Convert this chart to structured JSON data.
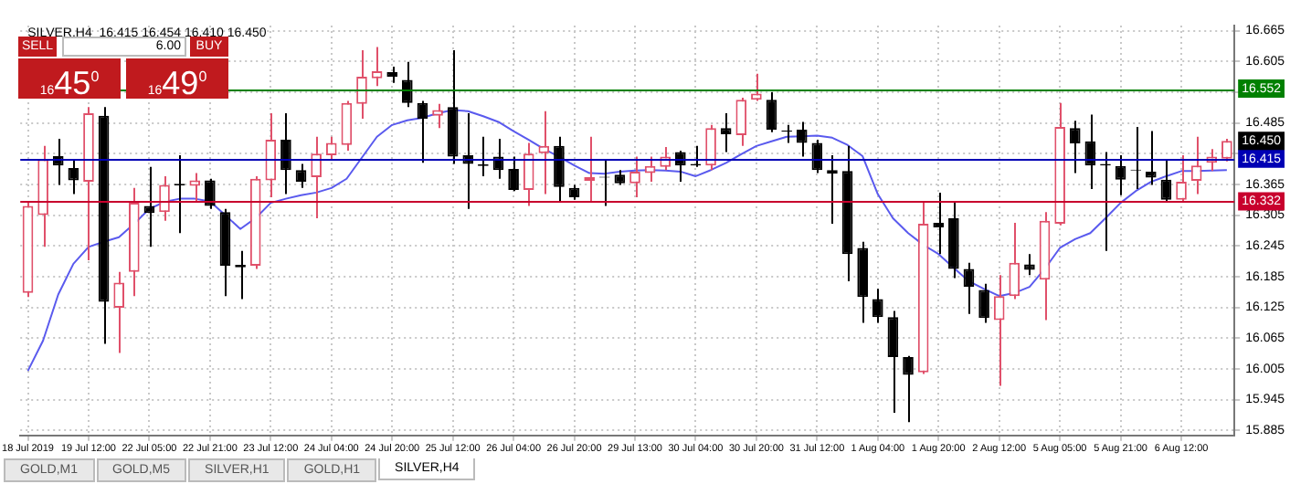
{
  "chart_data": {
    "type": "candlestick",
    "title": "SILVER,H4  16.415 16.454 16.410 16.450",
    "categories": [
      "18 Jul 2019",
      null,
      null,
      null,
      "19 Jul 12:00",
      null,
      null,
      null,
      "22 Jul 05:00",
      null,
      null,
      null,
      "22 Jul 21:00",
      null,
      null,
      null,
      "23 Jul 12:00",
      null,
      null,
      null,
      "24 Jul 04:00",
      null,
      null,
      null,
      "24 Jul 20:00",
      null,
      null,
      null,
      "25 Jul 12:00",
      null,
      null,
      null,
      "26 Jul 04:00",
      null,
      null,
      null,
      "26 Jul 20:00",
      null,
      null,
      null,
      "29 Jul 13:00",
      null,
      null,
      null,
      "30 Jul 04:00",
      null,
      null,
      null,
      "30 Jul 20:00",
      null,
      null,
      null,
      "31 Jul 12:00",
      null,
      null,
      null,
      "1 Aug 04:00",
      null,
      null,
      null,
      "1 Aug 20:00",
      null,
      null,
      null,
      "2 Aug 12:00",
      null,
      null,
      null,
      "5 Aug 05:00",
      null,
      null,
      null,
      "5 Aug 21:00",
      null,
      null,
      null,
      "6 Aug 12:00",
      null,
      null,
      null
    ],
    "ohlc": [
      [
        16.153,
        16.33,
        16.145,
        16.323
      ],
      [
        16.305,
        16.44,
        16.243,
        16.414
      ],
      [
        16.42,
        16.454,
        16.364,
        16.402
      ],
      [
        16.397,
        16.414,
        16.346,
        16.373
      ],
      [
        16.37,
        16.516,
        16.217,
        16.504
      ],
      [
        16.499,
        16.516,
        16.054,
        16.136
      ],
      [
        16.124,
        16.194,
        16.036,
        16.173
      ],
      [
        16.194,
        16.358,
        16.147,
        16.329
      ],
      [
        16.323,
        16.399,
        16.243,
        16.309
      ],
      [
        16.311,
        16.381,
        16.294,
        16.364
      ],
      [
        16.366,
        16.422,
        16.27,
        16.363
      ],
      [
        16.362,
        16.387,
        16.329,
        16.373
      ],
      [
        16.373,
        16.376,
        16.317,
        16.323
      ],
      [
        16.311,
        16.317,
        16.147,
        16.206
      ],
      [
        16.208,
        16.235,
        16.141,
        16.203
      ],
      [
        16.206,
        16.381,
        16.2,
        16.376
      ],
      [
        16.373,
        16.504,
        16.34,
        16.452
      ],
      [
        16.452,
        16.504,
        16.346,
        16.393
      ],
      [
        16.393,
        16.405,
        16.358,
        16.37
      ],
      [
        16.379,
        16.458,
        16.299,
        16.425
      ],
      [
        16.422,
        16.458,
        16.414,
        16.446
      ],
      [
        16.442,
        16.528,
        16.431,
        16.524
      ],
      [
        16.522,
        16.627,
        16.493,
        16.575
      ],
      [
        16.572,
        16.633,
        16.557,
        16.586
      ],
      [
        16.584,
        16.595,
        16.563,
        16.575
      ],
      [
        16.569,
        16.604,
        16.516,
        16.524
      ],
      [
        16.524,
        16.528,
        16.407,
        16.493
      ],
      [
        16.499,
        16.522,
        16.475,
        16.51
      ],
      [
        16.516,
        16.627,
        16.405,
        16.419
      ],
      [
        16.422,
        16.504,
        16.317,
        16.405
      ],
      [
        16.404,
        16.458,
        16.381,
        16.401
      ],
      [
        16.419,
        16.454,
        16.376,
        16.393
      ],
      [
        16.395,
        16.419,
        16.352,
        16.354
      ],
      [
        16.354,
        16.446,
        16.323,
        16.425
      ],
      [
        16.426,
        16.508,
        16.346,
        16.44
      ],
      [
        16.44,
        16.458,
        16.329,
        16.36
      ],
      [
        16.358,
        16.364,
        16.335,
        16.34
      ],
      [
        16.372,
        16.458,
        16.329,
        16.379
      ],
      [
        16.38,
        16.414,
        16.323,
        16.378
      ],
      [
        16.384,
        16.393,
        16.364,
        16.367
      ],
      [
        16.367,
        16.419,
        16.34,
        16.39
      ],
      [
        16.387,
        16.419,
        16.37,
        16.401
      ],
      [
        16.399,
        16.438,
        16.393,
        16.419
      ],
      [
        16.428,
        16.431,
        16.37,
        16.402
      ],
      [
        16.405,
        16.44,
        16.399,
        16.402
      ],
      [
        16.402,
        16.481,
        16.393,
        16.475
      ],
      [
        16.475,
        16.504,
        16.428,
        16.463
      ],
      [
        16.461,
        16.534,
        16.44,
        16.53
      ],
      [
        16.53,
        16.581,
        16.528,
        16.542
      ],
      [
        16.53,
        16.545,
        16.467,
        16.472
      ],
      [
        16.47,
        16.481,
        16.446,
        16.468
      ],
      [
        16.472,
        16.487,
        16.419,
        16.446
      ],
      [
        16.446,
        16.452,
        16.387,
        16.393
      ],
      [
        16.393,
        16.422,
        16.288,
        16.386
      ],
      [
        16.391,
        16.44,
        16.176,
        16.229
      ],
      [
        16.241,
        16.253,
        16.095,
        16.145
      ],
      [
        16.141,
        16.161,
        16.095,
        16.106
      ],
      [
        16.106,
        16.118,
        15.919,
        16.028
      ],
      [
        16.028,
        16.03,
        15.901,
        15.993
      ],
      [
        15.998,
        16.329,
        15.995,
        16.288
      ],
      [
        16.29,
        16.349,
        16.229,
        16.281
      ],
      [
        16.299,
        16.329,
        16.182,
        16.2
      ],
      [
        16.2,
        16.212,
        16.112,
        16.165
      ],
      [
        16.159,
        16.171,
        16.095,
        16.104
      ],
      [
        16.1,
        16.188,
        15.972,
        16.147
      ],
      [
        16.147,
        16.29,
        16.141,
        16.212
      ],
      [
        16.209,
        16.229,
        16.188,
        16.198
      ],
      [
        16.179,
        16.311,
        16.1,
        16.294
      ],
      [
        16.288,
        16.524,
        16.285,
        16.477
      ],
      [
        16.475,
        16.489,
        16.387,
        16.445
      ],
      [
        16.449,
        16.501,
        16.356,
        16.402
      ],
      [
        16.405,
        16.428,
        16.235,
        16.402
      ],
      [
        16.401,
        16.422,
        16.344,
        16.374
      ],
      [
        16.394,
        16.477,
        16.356,
        16.392
      ],
      [
        16.39,
        16.469,
        16.364,
        16.378
      ],
      [
        16.374,
        16.411,
        16.332,
        16.335
      ],
      [
        16.335,
        16.422,
        16.331,
        16.37
      ],
      [
        16.372,
        16.458,
        16.346,
        16.402
      ],
      [
        16.407,
        16.434,
        16.391,
        16.419
      ],
      [
        16.415,
        16.454,
        16.41,
        16.45
      ]
    ],
    "series": [
      {
        "type": "line",
        "color": "#5a5aee",
        "values": [
          16.001,
          16.06,
          16.15,
          16.21,
          16.243,
          16.253,
          16.262,
          16.288,
          16.317,
          16.331,
          16.337,
          16.337,
          16.332,
          16.305,
          16.278,
          16.299,
          16.329,
          16.337,
          16.344,
          16.349,
          16.358,
          16.376,
          16.417,
          16.458,
          16.481,
          16.49,
          16.495,
          16.504,
          16.51,
          16.508,
          16.498,
          16.487,
          16.469,
          16.452,
          16.434,
          16.419,
          16.402,
          16.387,
          16.386,
          16.39,
          16.392,
          16.393,
          16.392,
          16.39,
          16.381,
          16.393,
          16.407,
          16.424,
          16.44,
          16.449,
          16.458,
          16.459,
          16.46,
          16.456,
          16.442,
          16.42,
          16.346,
          16.299,
          16.27,
          16.247,
          16.229,
          16.202,
          16.176,
          16.161,
          16.147,
          16.153,
          16.165,
          16.2,
          16.241,
          16.258,
          16.27,
          16.299,
          16.329,
          16.352,
          16.37,
          16.381,
          16.391,
          16.391,
          16.392,
          16.393
        ]
      }
    ],
    "ylim": [
      15.875,
      16.675
    ],
    "yticks": [
      15.885,
      15.945,
      16.005,
      16.065,
      16.125,
      16.185,
      16.245,
      16.305,
      16.365,
      {
        "value": 16.425,
        "label": null
      },
      16.485,
      {
        "value": 16.545,
        "label": null
      },
      16.605,
      16.665
    ],
    "grid": true,
    "legend": false,
    "ref_lines": [
      {
        "axis": "y",
        "value": 16.552,
        "label": "16.552",
        "color": "#008000"
      },
      {
        "axis": "y",
        "value": 16.415,
        "label": "16.415",
        "color": "#0000b4"
      },
      {
        "axis": "y",
        "value": 16.332,
        "label": "16.332",
        "color": "#c8002d"
      }
    ],
    "annotations": [
      "SELL",
      "6.00",
      "BUY",
      "1645$^{0}$",
      "1649$^{0}$",
      "GOLD,M1",
      "GOLD,M5",
      "SILVER,H1",
      "GOLD,H1",
      "SILVER,H4",
      {
        "text": "16.450",
        "y": 16.45
      }
    ]
  }
}
